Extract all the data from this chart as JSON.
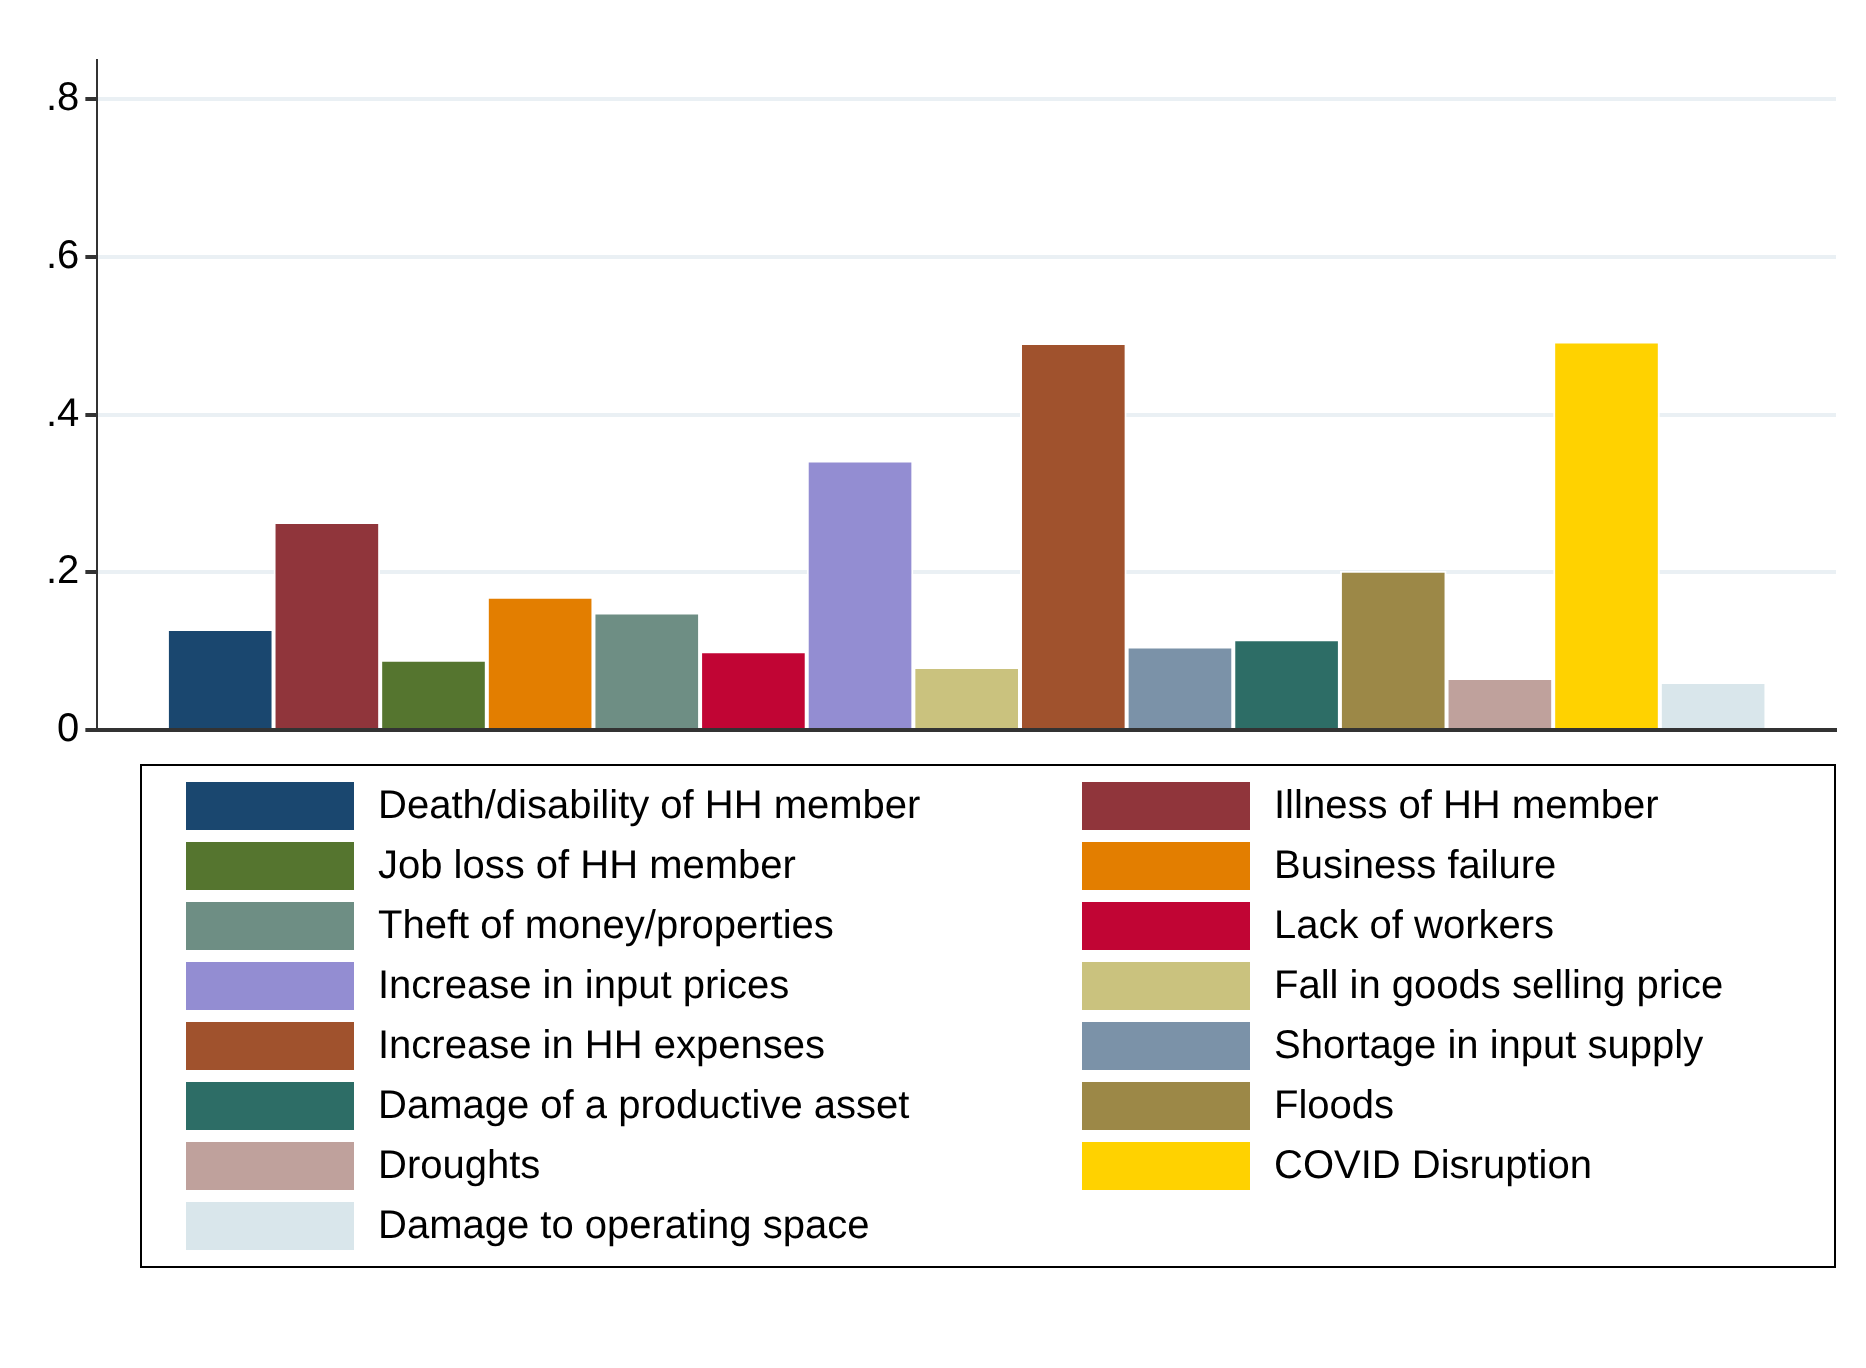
{
  "chart_data": {
    "type": "bar",
    "categories": [
      null
    ],
    "series": [
      {
        "name": "Death/disability of HH member",
        "color": "#1a476f",
        "values": [
          0.128
        ]
      },
      {
        "name": "Illness of HH member",
        "color": "#90353b",
        "values": [
          0.264
        ]
      },
      {
        "name": "Job loss of HH member",
        "color": "#55752f",
        "values": [
          0.089
        ]
      },
      {
        "name": "Business failure",
        "color": "#e37e00",
        "values": [
          0.169
        ]
      },
      {
        "name": "Theft of money/properties",
        "color": "#6e8e84",
        "values": [
          0.149
        ]
      },
      {
        "name": "Lack of workers",
        "color": "#c10534",
        "values": [
          0.1
        ]
      },
      {
        "name": "Increase in input prices",
        "color": "#938dd2",
        "values": [
          0.342
        ]
      },
      {
        "name": "Fall in goods selling price",
        "color": "#cac27e",
        "values": [
          0.08
        ]
      },
      {
        "name": "Increase in HH expenses",
        "color": "#a0522d",
        "values": [
          0.491
        ]
      },
      {
        "name": "Shortage in input supply",
        "color": "#7b92a8",
        "values": [
          0.106
        ]
      },
      {
        "name": "Damage of a productive asset",
        "color": "#2d6d66",
        "values": [
          0.115
        ]
      },
      {
        "name": "Floods",
        "color": "#9c8847",
        "values": [
          0.202
        ]
      },
      {
        "name": "Droughts",
        "color": "#bfa19c",
        "values": [
          0.066
        ]
      },
      {
        "name": "COVID Disruption",
        "color": "#ffd200",
        "values": [
          0.493
        ]
      },
      {
        "name": "Damage to operating space",
        "color": "#d9e6eb",
        "values": [
          0.061
        ]
      }
    ],
    "ylim": [
      0,
      0.85
    ],
    "yticks": [
      {
        "value": 0,
        "label": "0"
      },
      {
        "value": 0.2,
        "label": ".2"
      },
      {
        "value": 0.4,
        "label": ".4"
      },
      {
        "value": 0.6,
        "label": ".6"
      },
      {
        "value": 0.8,
        "label": ".8"
      }
    ],
    "grid": "y",
    "legend": "bottom"
  }
}
